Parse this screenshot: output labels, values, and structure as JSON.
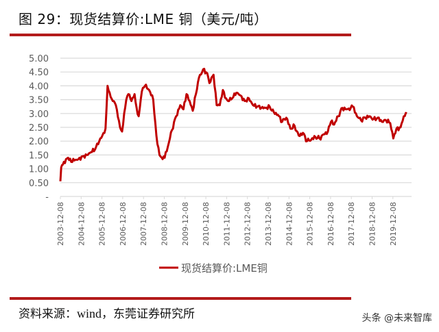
{
  "header": {
    "title": "图 29：现货结算价:LME 铜（美元/吨）"
  },
  "footer": {
    "source_prefix": "资料来源：",
    "source_en": "wind",
    "source_suffix": "，东莞证券研究所",
    "watermark": "头条 @未来智库"
  },
  "colors": {
    "accent": "#b31b1b",
    "line": "#c00000",
    "grid": "#d9d9d9",
    "axis_text": "#595959"
  },
  "chart_data": {
    "type": "line",
    "title": "现货结算价:LME 铜（美元/吨）",
    "xlabel": "",
    "ylabel": "",
    "ylim": [
      0,
      5.0
    ],
    "y_ticks": [
      "-",
      "0.50",
      "1.00",
      "1.50",
      "2.00",
      "2.50",
      "3.00",
      "3.50",
      "4.00",
      "4.50",
      "5.00"
    ],
    "x_tick_labels": [
      "2003-12-08",
      "2004-12-08",
      "2005-12-08",
      "2006-12-08",
      "2007-12-08",
      "2008-12-08",
      "2009-12-08",
      "2010-12-08",
      "2011-12-08",
      "2012-12-08",
      "2013-12-08",
      "2014-12-08",
      "2015-12-08",
      "2016-12-08",
      "2017-12-08",
      "2018-12-08",
      "2019-12-08"
    ],
    "grid": true,
    "legend_position": "bottom",
    "series": [
      {
        "name": "现货结算价:LME铜",
        "color": "#c00000",
        "x": [
          2003.93,
          2003.97,
          2004.05,
          2004.2,
          2004.3,
          2004.45,
          2004.6,
          2004.8,
          2005.0,
          2005.2,
          2005.4,
          2005.6,
          2005.8,
          2005.95,
          2006.1,
          2006.2,
          2006.35,
          2006.45,
          2006.6,
          2006.8,
          2006.9,
          2007.0,
          2007.1,
          2007.2,
          2007.35,
          2007.5,
          2007.6,
          2007.7,
          2007.85,
          2008.0,
          2008.2,
          2008.4,
          2008.55,
          2008.7,
          2008.85,
          2008.95,
          2009.1,
          2009.3,
          2009.5,
          2009.7,
          2009.85,
          2010.0,
          2010.15,
          2010.3,
          2010.45,
          2010.6,
          2010.8,
          2011.0,
          2011.1,
          2011.3,
          2011.45,
          2011.6,
          2011.75,
          2011.9,
          2012.0,
          2012.2,
          2012.4,
          2012.6,
          2012.8,
          2013.0,
          2013.2,
          2013.4,
          2013.6,
          2013.8,
          2014.0,
          2014.2,
          2014.4,
          2014.6,
          2014.8,
          2015.0,
          2015.2,
          2015.4,
          2015.6,
          2015.8,
          2016.0,
          2016.2,
          2016.4,
          2016.6,
          2016.8,
          2016.95,
          2017.1,
          2017.3,
          2017.5,
          2017.7,
          2017.9,
          2018.0,
          2018.2,
          2018.4,
          2018.6,
          2018.8,
          2019.0,
          2019.2,
          2019.4,
          2019.6,
          2019.8,
          2019.95,
          2020.1,
          2020.3,
          2020.45,
          2020.6
        ],
        "values": [
          0.55,
          1.05,
          1.15,
          1.35,
          1.4,
          1.25,
          1.3,
          1.35,
          1.45,
          1.5,
          1.6,
          1.7,
          2.0,
          2.2,
          2.45,
          4.0,
          3.6,
          3.45,
          3.3,
          2.5,
          2.35,
          3.0,
          3.5,
          3.7,
          3.45,
          3.7,
          3.2,
          2.9,
          3.8,
          4.0,
          3.85,
          3.5,
          2.2,
          1.5,
          1.35,
          1.4,
          1.8,
          2.4,
          2.9,
          3.3,
          3.15,
          3.7,
          3.45,
          3.1,
          3.7,
          4.3,
          4.6,
          4.45,
          4.1,
          4.4,
          3.3,
          3.3,
          3.85,
          3.55,
          3.45,
          3.55,
          3.75,
          3.65,
          3.45,
          3.55,
          3.3,
          3.25,
          3.2,
          3.2,
          3.25,
          3.05,
          2.95,
          2.7,
          2.85,
          2.45,
          2.55,
          2.2,
          2.3,
          2.0,
          2.05,
          2.15,
          2.1,
          2.25,
          2.35,
          2.7,
          2.6,
          2.9,
          3.2,
          3.15,
          3.2,
          3.25,
          2.9,
          2.75,
          2.85,
          2.9,
          2.8,
          2.85,
          2.7,
          2.75,
          2.65,
          2.1,
          2.45,
          2.5,
          2.9,
          3.0
        ]
      }
    ]
  }
}
